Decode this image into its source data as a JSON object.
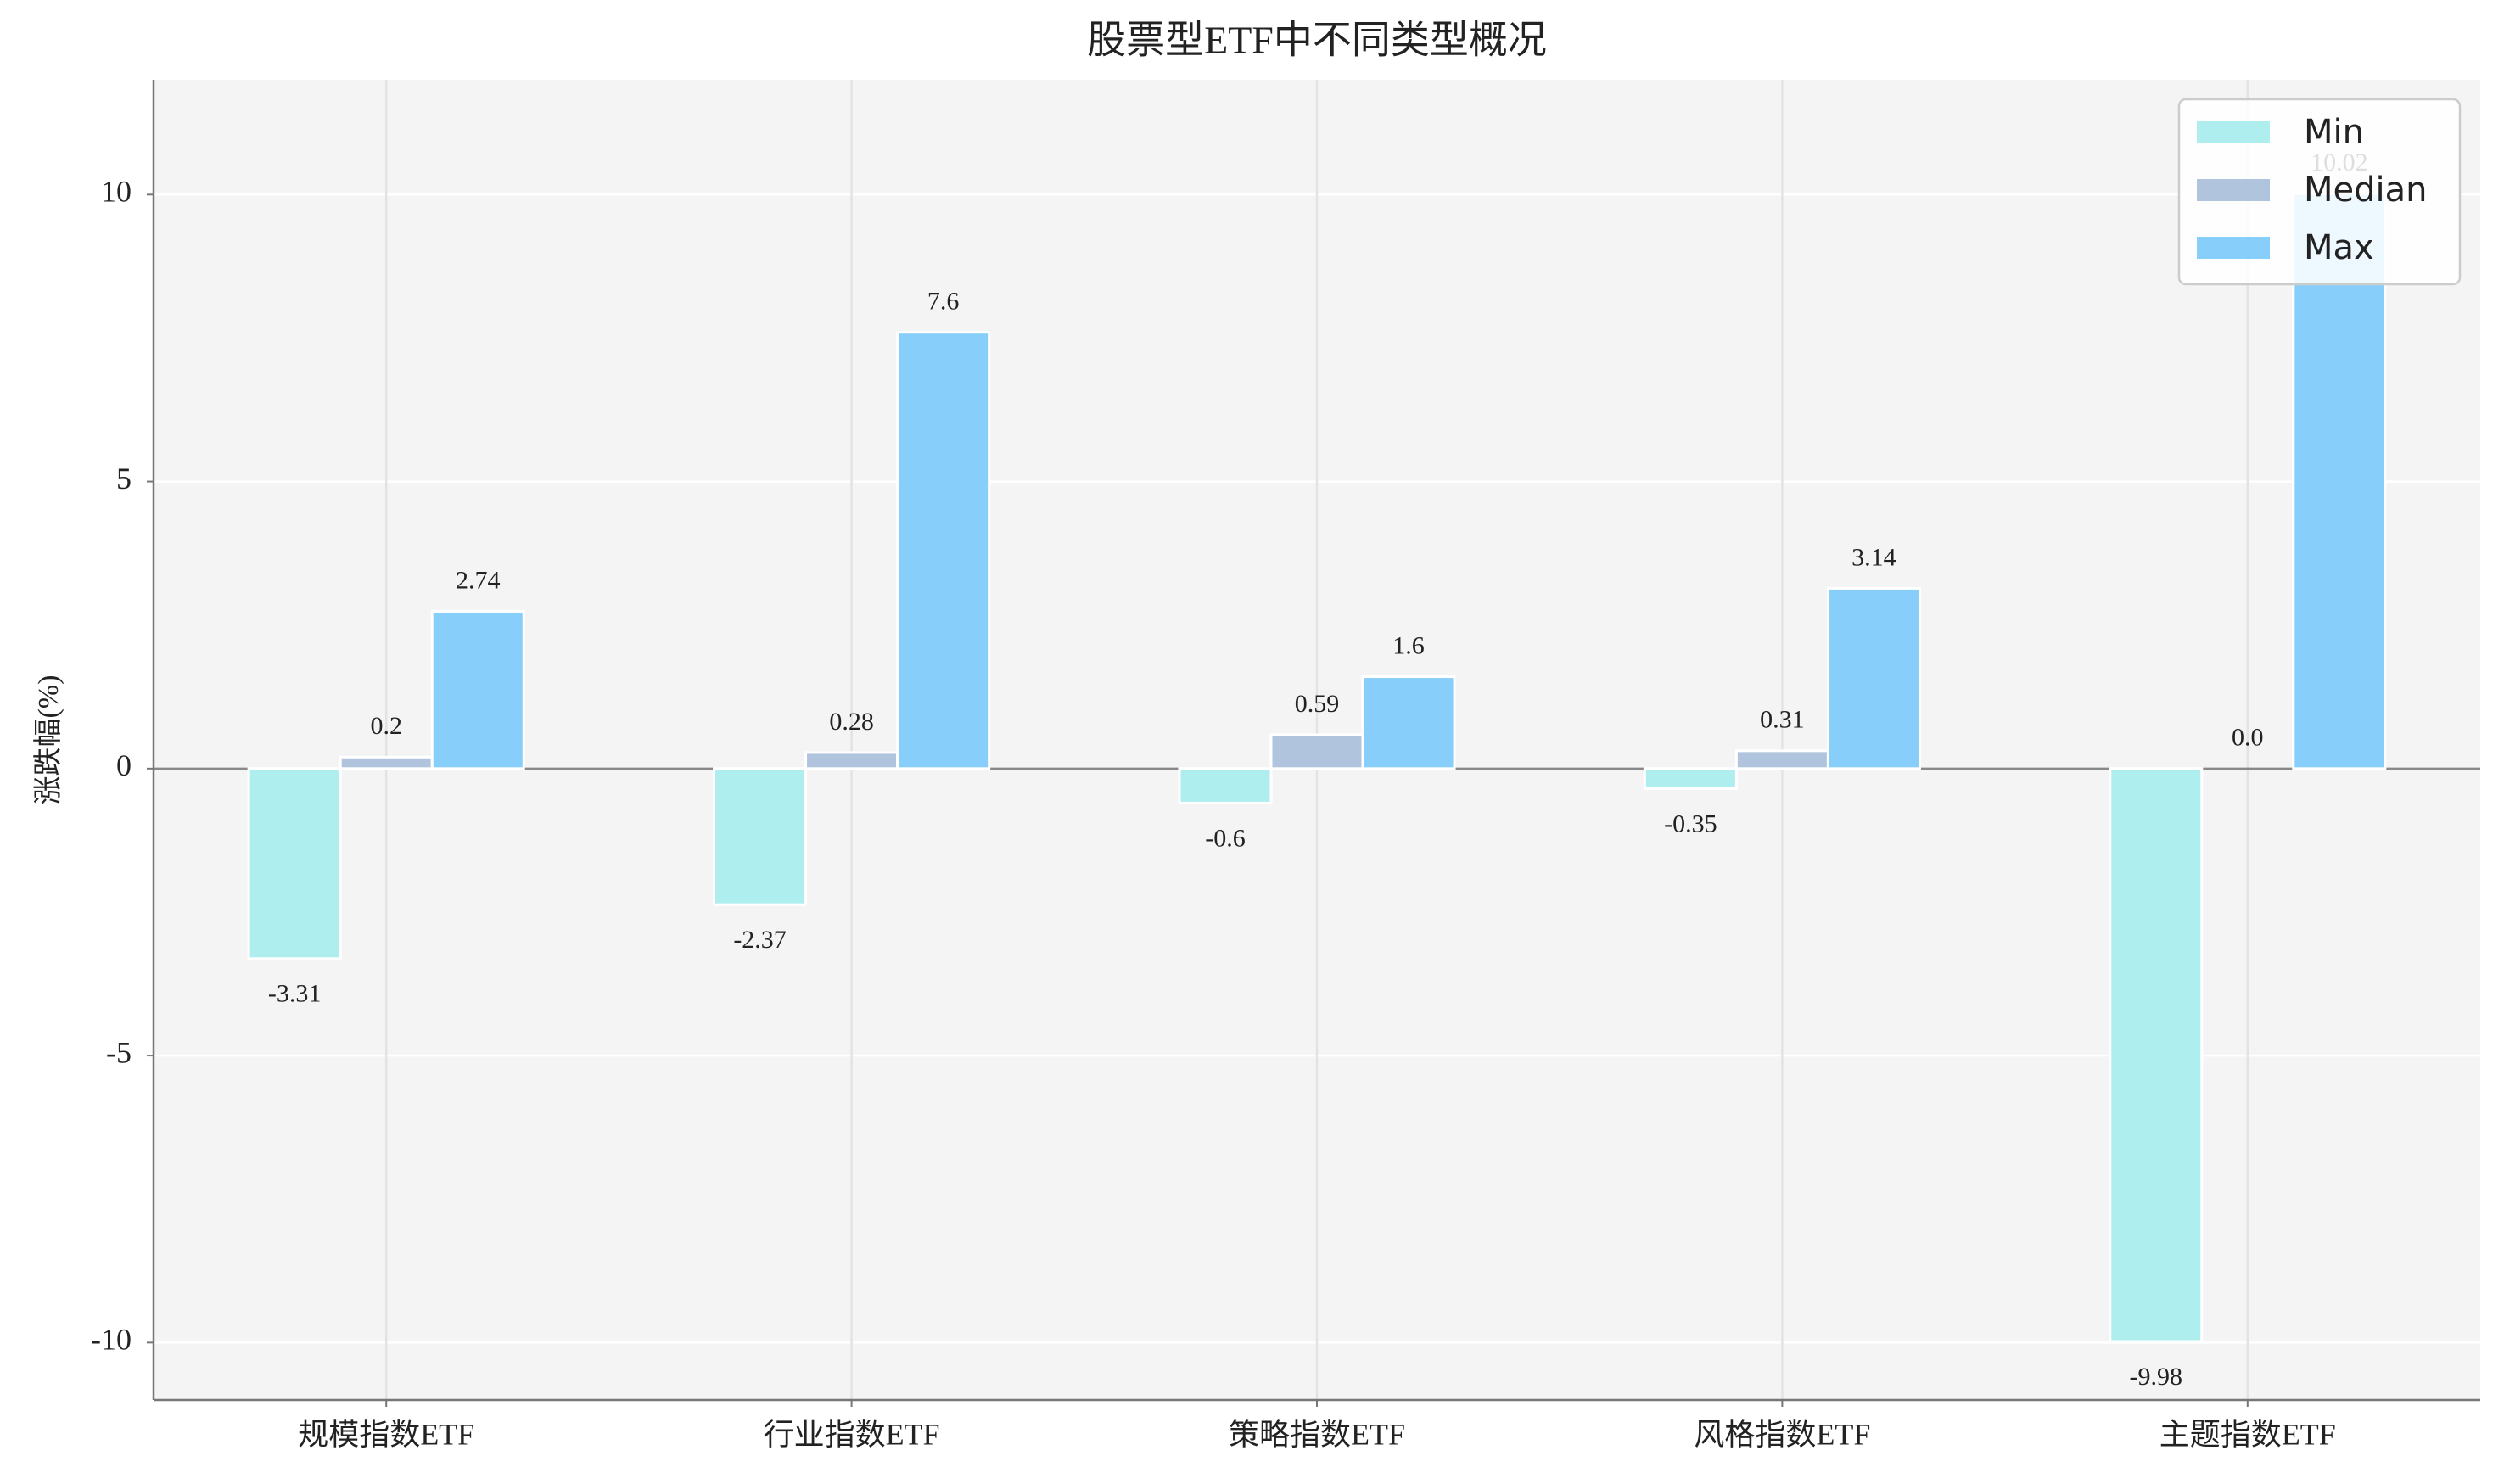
{
  "chart_data": {
    "type": "bar",
    "title": "股票型ETF中不同类型概况",
    "y_label": "涨跌幅(%)",
    "categories": [
      "规模指数ETF",
      "行业指数ETF",
      "策略指数ETF",
      "风格指数ETF",
      "主题指数ETF"
    ],
    "series": [
      {
        "name": "Min",
        "color": "#afeeee",
        "values": [
          -3.31,
          -2.37,
          -0.6,
          -0.35,
          -9.98
        ]
      },
      {
        "name": "Median",
        "color": "#b0c4de",
        "values": [
          0.2,
          0.28,
          0.59,
          0.31,
          0.0
        ],
        "value_labels": [
          "0.2",
          "0.28",
          "0.59",
          "0.31",
          "0.0"
        ]
      },
      {
        "name": "Max",
        "color": "#87cefa",
        "values": [
          2.74,
          7.6,
          1.6,
          3.14,
          10.02
        ]
      }
    ],
    "ylim": [
      -11,
      12
    ],
    "yticks": [
      -10,
      -5,
      0,
      5,
      10
    ],
    "grid": true,
    "legend": "upper right"
  }
}
